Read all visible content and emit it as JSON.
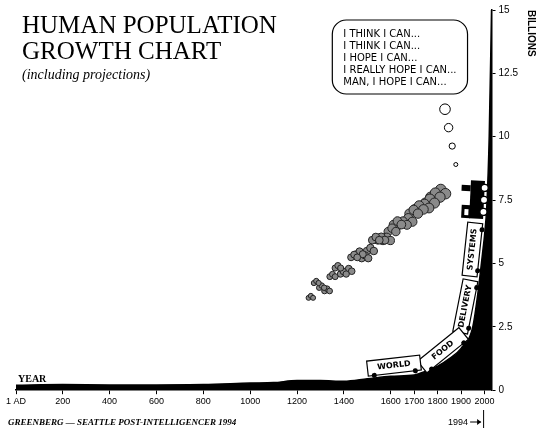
{
  "chart_data": {
    "type": "line",
    "title": "HUMAN POPULATION GROWTH CHART",
    "subtitle": "(including projections)",
    "x_label": "YEAR",
    "y_label": "BILLIONS",
    "x": [
      1,
      200,
      400,
      600,
      800,
      1000,
      1100,
      1200,
      1300,
      1400,
      1500,
      1600,
      1700,
      1750,
      1800,
      1850,
      1900,
      1950,
      1970,
      1994,
      2000,
      2010,
      2020,
      2030
    ],
    "values": [
      0.2,
      0.22,
      0.21,
      0.21,
      0.22,
      0.28,
      0.3,
      0.38,
      0.38,
      0.35,
      0.45,
      0.55,
      0.6,
      0.75,
      0.95,
      1.25,
      1.65,
      2.5,
      3.7,
      5.6,
      6.1,
      7.3,
      10,
      15
    ],
    "color": "#000000",
    "xlim": [
      1,
      2030
    ],
    "xticks": [
      {
        "value": 1,
        "label": "1 AD"
      },
      200,
      400,
      600,
      800,
      1000,
      1200,
      1400,
      1600,
      1700,
      1800,
      1900,
      2000
    ],
    "ylim": [
      0,
      15
    ],
    "yticks": [
      0,
      2.5,
      5,
      7.5,
      10,
      12.5,
      15
    ],
    "grid": false,
    "annotations": {
      "thought_bubble": [
        "I THINK I CAN...",
        "I THINK I CAN...",
        "I HOPE I CAN...",
        "I REALLY HOPE I CAN...",
        "MAN, I HOPE I CAN..."
      ],
      "train_cars": [
        "WORLD",
        "FOOD",
        "DELIVERY",
        "SYSTEMS"
      ],
      "credit": "GREENBERG — SEATTLE POST-INTELLIGENCER 1994",
      "marker": 1994
    }
  }
}
